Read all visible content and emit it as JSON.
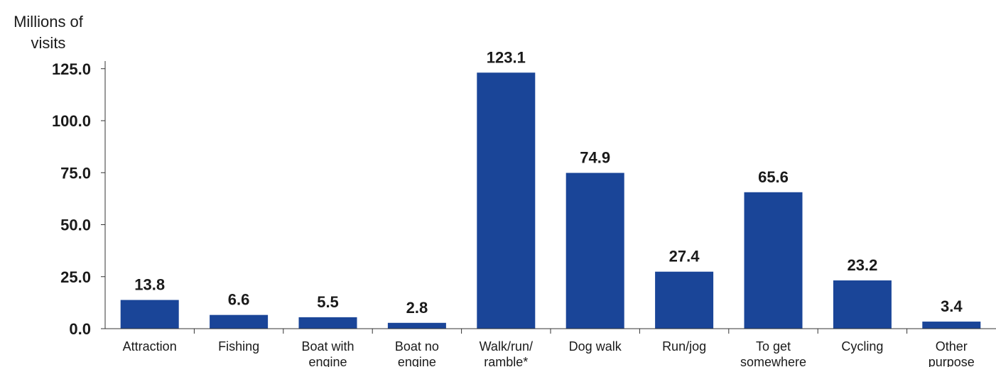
{
  "chart_data": {
    "type": "bar",
    "ylabel": "Millions of visits",
    "ylabel_lines": [
      "Millions of",
      "visits"
    ],
    "categories": [
      [
        "Attraction"
      ],
      [
        "Fishing"
      ],
      [
        "Boat with",
        "engine"
      ],
      [
        "Boat no",
        "engine"
      ],
      [
        "Walk/run/",
        "ramble*"
      ],
      [
        "Dog walk"
      ],
      [
        "Run/jog"
      ],
      [
        "To get",
        "somewhere"
      ],
      [
        "Cycling"
      ],
      [
        "Other",
        "purpose"
      ]
    ],
    "values": [
      13.8,
      6.6,
      5.5,
      2.8,
      123.1,
      74.9,
      27.4,
      65.6,
      23.2,
      3.4
    ],
    "data_labels": [
      "13.8",
      "6.6",
      "5.5",
      "2.8",
      "123.1",
      "74.9",
      "27.4",
      "65.6",
      "23.2",
      "3.4"
    ],
    "yticks": [
      "0.0",
      "25.0",
      "50.0",
      "75.0",
      "100.0",
      "125.0"
    ],
    "ylim": [
      0,
      130
    ],
    "bar_color": "#1a4598",
    "grid": false,
    "legend": "none"
  }
}
